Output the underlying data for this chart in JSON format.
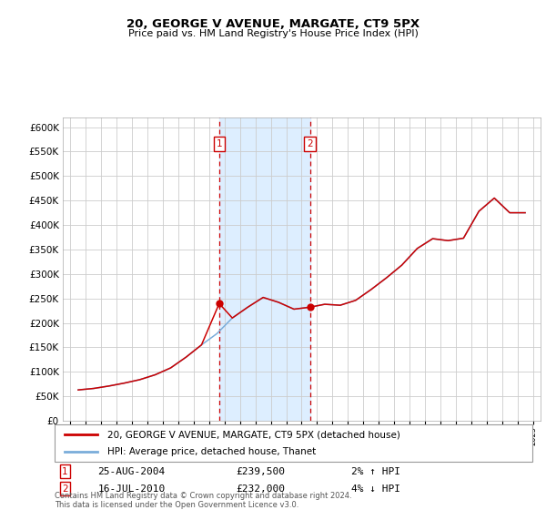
{
  "title": "20, GEORGE V AVENUE, MARGATE, CT9 5PX",
  "subtitle": "Price paid vs. HM Land Registry's House Price Index (HPI)",
  "ytick_values": [
    0,
    50000,
    100000,
    150000,
    200000,
    250000,
    300000,
    350000,
    400000,
    450000,
    500000,
    550000,
    600000
  ],
  "purchase1": {
    "date_x": 2004.65,
    "price": 239500,
    "label": "1",
    "date_str": "25-AUG-2004",
    "pct": "2%",
    "dir": "↑"
  },
  "purchase2": {
    "date_x": 2010.54,
    "price": 232000,
    "label": "2",
    "date_str": "16-JUL-2010",
    "pct": "4%",
    "dir": "↓"
  },
  "hpi_color": "#7aadda",
  "price_color": "#cc0000",
  "shade_color": "#ddeeff",
  "marker_color": "#cc0000",
  "box_color": "#cc0000",
  "legend_label_price": "20, GEORGE V AVENUE, MARGATE, CT9 5PX (detached house)",
  "legend_label_hpi": "HPI: Average price, detached house, Thanet",
  "footer": "Contains HM Land Registry data © Crown copyright and database right 2024.\nThis data is licensed under the Open Government Licence v3.0.",
  "xmin": 1994.5,
  "xmax": 2025.5,
  "ymin": 0,
  "ymax": 620000,
  "hpi_years": [
    1995.5,
    1996.5,
    1997.5,
    1998.5,
    1999.5,
    2000.5,
    2001.5,
    2002.5,
    2003.5,
    2004.5,
    2005.5,
    2006.5,
    2007.5,
    2008.5,
    2009.5,
    2010.5,
    2011.5,
    2012.5,
    2013.5,
    2014.5,
    2015.5,
    2016.5,
    2017.5,
    2018.5,
    2019.5,
    2020.5,
    2021.5,
    2022.5,
    2023.5,
    2024.5
  ],
  "hpi_values": [
    63000,
    66000,
    71000,
    77000,
    84000,
    94000,
    108000,
    130000,
    155000,
    178000,
    210000,
    232000,
    252000,
    242000,
    228000,
    232000,
    238000,
    236000,
    246000,
    268000,
    292000,
    318000,
    352000,
    372000,
    368000,
    373000,
    428000,
    455000,
    425000,
    425000
  ],
  "price_years": [
    1995.5,
    1996.5,
    1997.5,
    1998.5,
    1999.5,
    2000.5,
    2001.5,
    2002.5,
    2003.5,
    2004.65,
    2005.5,
    2006.5,
    2007.5,
    2008.5,
    2009.5,
    2010.54,
    2011.5,
    2012.5,
    2013.5,
    2014.5,
    2015.5,
    2016.5,
    2017.5,
    2018.5,
    2019.5,
    2020.5,
    2021.5,
    2022.5,
    2023.5,
    2024.5
  ],
  "price_values": [
    63000,
    66000,
    71000,
    77000,
    84000,
    94000,
    108000,
    130000,
    155000,
    239500,
    210000,
    232000,
    252000,
    242000,
    228000,
    232000,
    238000,
    236000,
    246000,
    268000,
    292000,
    318000,
    352000,
    372000,
    368000,
    373000,
    428000,
    455000,
    425000,
    425000
  ]
}
